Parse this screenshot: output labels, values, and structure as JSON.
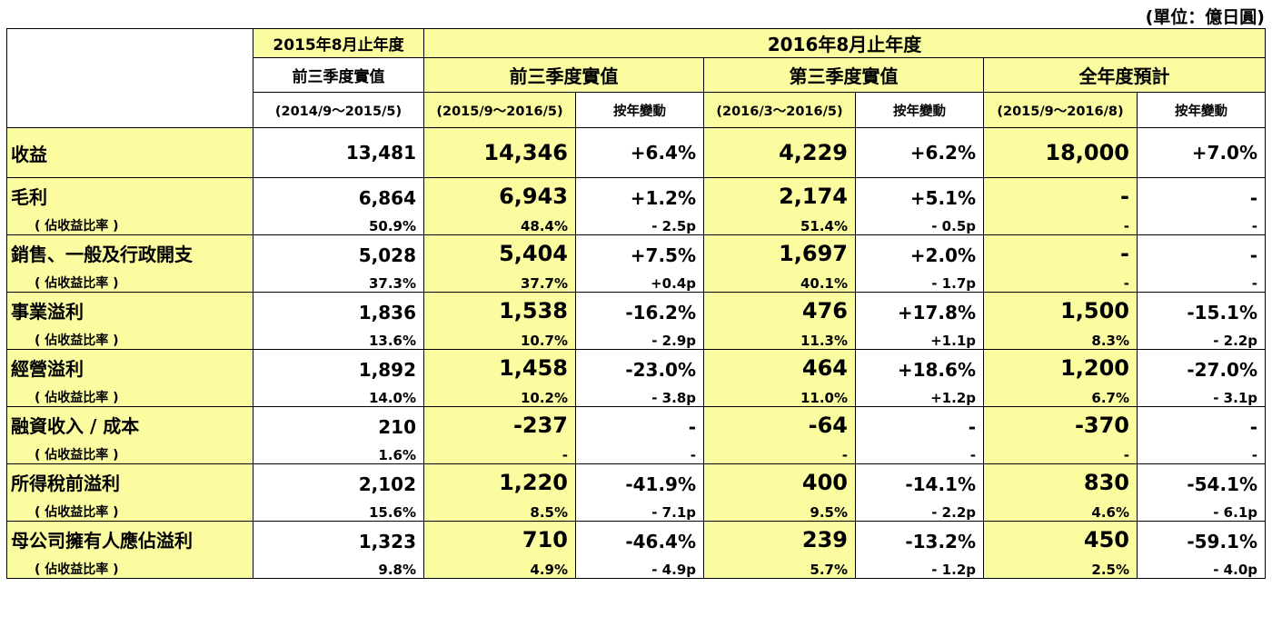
{
  "unit_note": "(單位：億日圓)",
  "header": {
    "period_prev": "2015年8月止年度",
    "period_curr": "2016年8月止年度",
    "col_prev_title": "前三季度實值",
    "col_prev_range": "(2014/9～2015/5)",
    "groups": [
      {
        "title": "前三季度實值",
        "range": "(2015/9～2016/5)",
        "change": "按年變動"
      },
      {
        "title": "第三季度實值",
        "range": "(2016/3～2016/5)",
        "change": "按年變動"
      },
      {
        "title": "全年度預計",
        "range": "(2015/9～2016/8)",
        "change": "按年變動"
      }
    ]
  },
  "rows": [
    {
      "label": "收益",
      "values": [
        "13,481",
        "14,346",
        "+6.4%",
        "4,229",
        "+6.2%",
        "18,000",
        "+7.0%"
      ]
    },
    {
      "label": "毛利",
      "sublabel": "( 佔收益比率 )",
      "values": [
        "6,864",
        "6,943",
        "+1.2%",
        "2,174",
        "+5.1%",
        "-",
        "-"
      ],
      "ratios": [
        "50.9%",
        "48.4%",
        "- 2.5p",
        "51.4%",
        "- 0.5p",
        "-",
        "-"
      ]
    },
    {
      "label": "銷售、一般及行政開支",
      "sublabel": "( 佔收益比率 )",
      "values": [
        "5,028",
        "5,404",
        "+7.5%",
        "1,697",
        "+2.0%",
        "-",
        "-"
      ],
      "ratios": [
        "37.3%",
        "37.7%",
        "+0.4p",
        "40.1%",
        "- 1.7p",
        "-",
        "-"
      ]
    },
    {
      "label": "事業溢利",
      "sublabel": "( 佔收益比率 )",
      "values": [
        "1,836",
        "1,538",
        "-16.2%",
        "476",
        "+17.8%",
        "1,500",
        "-15.1%"
      ],
      "ratios": [
        "13.6%",
        "10.7%",
        "- 2.9p",
        "11.3%",
        "+1.1p",
        "8.3%",
        "- 2.2p"
      ]
    },
    {
      "label": "經營溢利",
      "sublabel": "( 佔收益比率 )",
      "values": [
        "1,892",
        "1,458",
        "-23.0%",
        "464",
        "+18.6%",
        "1,200",
        "-27.0%"
      ],
      "ratios": [
        "14.0%",
        "10.2%",
        "- 3.8p",
        "11.0%",
        "+1.2p",
        "6.7%",
        "- 3.1p"
      ]
    },
    {
      "label": "融資收入 / 成本",
      "sublabel": "( 佔收益比率 )",
      "values": [
        "210",
        "-237",
        "-",
        "-64",
        "-",
        "-370",
        "-"
      ],
      "ratios": [
        "1.6%",
        "-",
        "-",
        "-",
        "-",
        "-",
        "-"
      ]
    },
    {
      "label": "所得稅前溢利",
      "sublabel": "( 佔收益比率 )",
      "values": [
        "2,102",
        "1,220",
        "-41.9%",
        "400",
        "-14.1%",
        "830",
        "-54.1%"
      ],
      "ratios": [
        "15.6%",
        "8.5%",
        "- 7.1p",
        "9.5%",
        "- 2.2p",
        "4.6%",
        "- 6.1p"
      ]
    },
    {
      "label": "母公司擁有人應佔溢利",
      "sublabel": "( 佔收益比率 )",
      "values": [
        "1,323",
        "710",
        "-46.4%",
        "239",
        "-13.2%",
        "450",
        "-59.1%"
      ],
      "ratios": [
        "9.8%",
        "4.9%",
        "- 4.9p",
        "5.7%",
        "- 1.2p",
        "2.5%",
        "- 4.0p"
      ]
    }
  ],
  "colors": {
    "highlight": "#fbfba0",
    "white": "#ffffff"
  }
}
